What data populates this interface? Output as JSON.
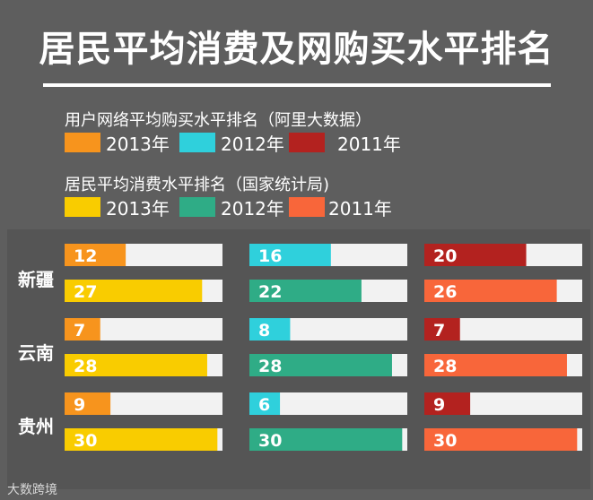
{
  "title": "居民平均消费及网购买水平排名",
  "legend": {
    "group1_title": "用户网络平均购买水平排名（阿里大数据）",
    "group1": [
      {
        "label": "2013年",
        "color": "#f7941d"
      },
      {
        "label": "2012年",
        "color": "#2fd0dc"
      },
      {
        "label": "2011年",
        "color": "#b3221f"
      }
    ],
    "group2_title": "居民平均消费水平排名（国家统计局)",
    "group2": [
      {
        "label": "2013年",
        "color": "#f9cc00"
      },
      {
        "label": "2012年",
        "color": "#2fac86"
      },
      {
        "label": "2011年",
        "color": "#f8663a"
      }
    ]
  },
  "cities": [
    "新疆",
    "云南",
    "贵州"
  ],
  "watermark": "大数跨境",
  "chart_data": {
    "type": "bar",
    "title": "居民平均消费及网购买水平排名",
    "categories": [
      "新疆",
      "云南",
      "贵州"
    ],
    "xlim": [
      0,
      31
    ],
    "grid": false,
    "legend_position": "top",
    "series": [
      {
        "name": "2013年",
        "group": "用户网络平均购买水平排名（阿里大数据）",
        "color": "#f7941d",
        "values": [
          12,
          7,
          9
        ]
      },
      {
        "name": "2012年",
        "group": "用户网络平均购买水平排名（阿里大数据）",
        "color": "#2fd0dc",
        "values": [
          16,
          8,
          6
        ]
      },
      {
        "name": "2011年",
        "group": "用户网络平均购买水平排名（阿里大数据）",
        "color": "#b3221f",
        "values": [
          20,
          7,
          9
        ]
      },
      {
        "name": "2013年",
        "group": "居民平均消费水平排名（国家统计局)",
        "color": "#f9cc00",
        "values": [
          27,
          28,
          30
        ]
      },
      {
        "name": "2012年",
        "group": "居民平均消费水平排名（国家统计局)",
        "color": "#2fac86",
        "values": [
          22,
          28,
          30
        ]
      },
      {
        "name": "2011年",
        "group": "居民平均消费水平排名（国家统计局)",
        "color": "#f8663a",
        "values": [
          26,
          28,
          30
        ]
      }
    ]
  }
}
